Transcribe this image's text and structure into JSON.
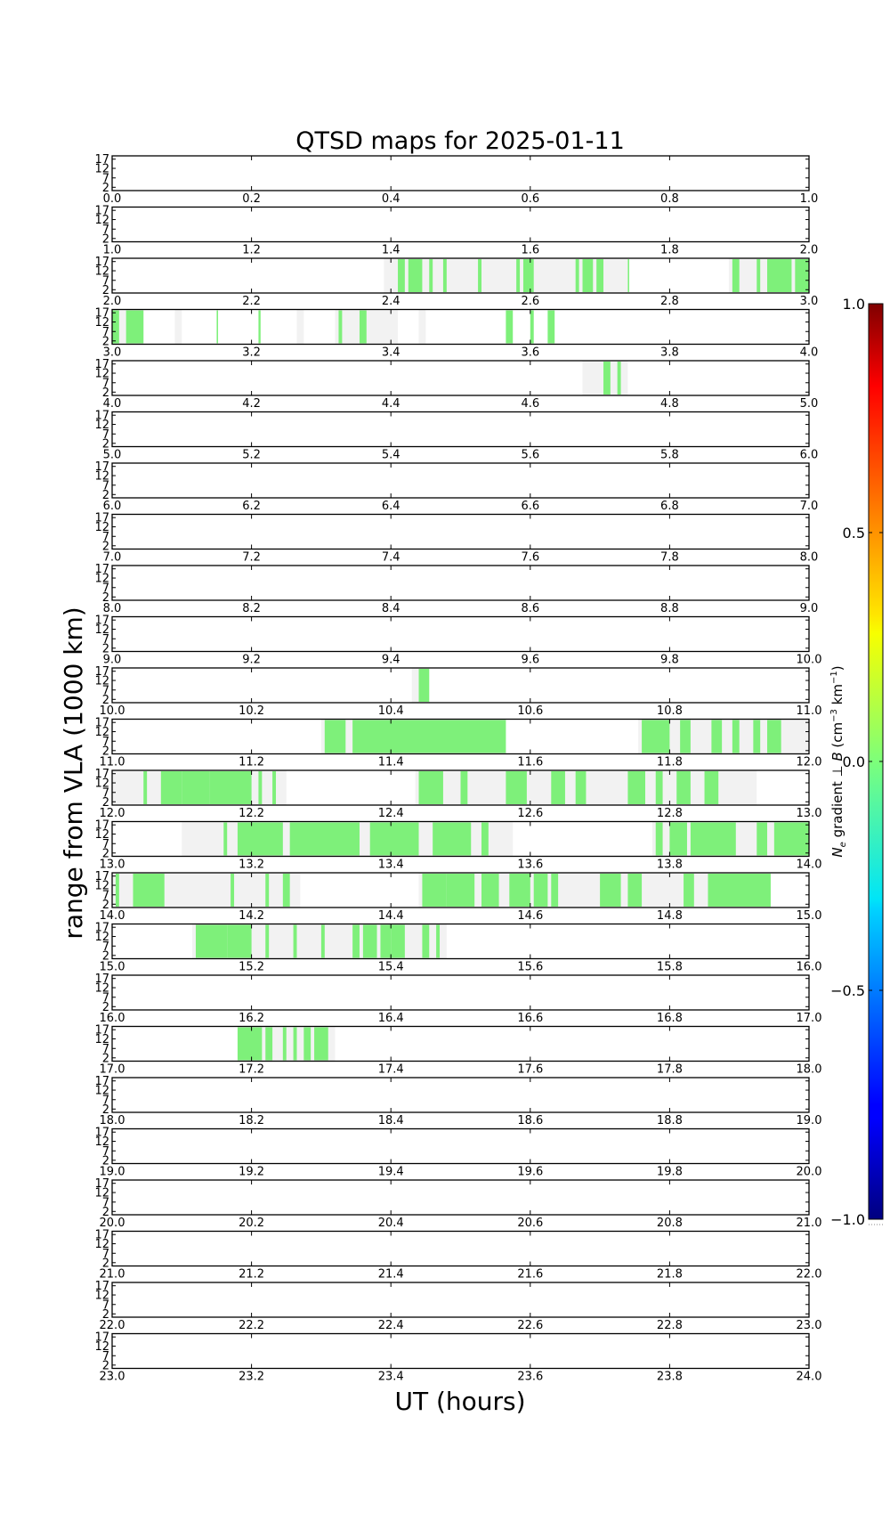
{
  "chart_data": {
    "type": "heatmap",
    "title": "QTSD maps for 2025-01-11",
    "xlabel": "UT (hours)",
    "ylabel": "range from VLA (1000 km)",
    "y_ticks": [
      "17",
      "12",
      "7",
      "2"
    ],
    "colorbar": {
      "label": "N_e gradient ⊥ B (cm^-3 km^-1)",
      "label_parts": {
        "n": "N",
        "e": "e",
        "mid": " gradient ⊥ ",
        "b": "B",
        "unit_open": " (cm",
        "exp1": "−3",
        "unit_mid": " km",
        "exp2": "−1",
        "unit_close": ")"
      },
      "range": [
        -1.0,
        1.0
      ],
      "ticks": [
        "1.0",
        "0.5",
        "0.0",
        "−0.5",
        "−1.0"
      ],
      "colormap": "jet"
    },
    "colors": {
      "coverage": "#f2f2f2",
      "gradient_near_zero": "#7ef07a",
      "axis": "#000000"
    },
    "panels": [
      {
        "range": [
          0,
          1
        ],
        "ticks": [
          "0.0",
          "0.2",
          "0.4",
          "0.6",
          "0.8",
          "1.0"
        ],
        "coverage": [],
        "signal": []
      },
      {
        "range": [
          1,
          2
        ],
        "ticks": [
          "1.0",
          "1.2",
          "1.4",
          "1.6",
          "1.8",
          "2.0"
        ],
        "coverage": [],
        "signal": []
      },
      {
        "range": [
          2,
          3
        ],
        "ticks": [
          "2.0",
          "2.2",
          "2.4",
          "2.6",
          "2.8",
          "3.0"
        ],
        "coverage": [
          [
            2.39,
            2.74
          ],
          [
            2.885,
            3.0
          ]
        ],
        "signal": [
          [
            2.41,
            2.42
          ],
          [
            2.425,
            2.445
          ],
          [
            2.455,
            2.46
          ],
          [
            2.475,
            2.48
          ],
          [
            2.525,
            2.53
          ],
          [
            2.58,
            2.585
          ],
          [
            2.59,
            2.605
          ],
          [
            2.665,
            2.67
          ],
          [
            2.675,
            2.69
          ],
          [
            2.695,
            2.705
          ],
          [
            2.74,
            2.742
          ],
          [
            2.89,
            2.9
          ],
          [
            2.925,
            2.93
          ],
          [
            2.94,
            2.975
          ],
          [
            2.98,
            3.0
          ]
        ]
      },
      {
        "range": [
          3,
          4
        ],
        "ticks": [
          "3.0",
          "3.2",
          "3.4",
          "3.6",
          "3.8",
          "4.0"
        ],
        "coverage": [
          [
            3.0,
            3.045
          ],
          [
            3.09,
            3.1
          ],
          [
            3.265,
            3.275
          ],
          [
            3.32,
            3.41
          ],
          [
            3.44,
            3.45
          ]
        ],
        "signal": [
          [
            3.0,
            3.01
          ],
          [
            3.02,
            3.045
          ],
          [
            3.15,
            3.152
          ],
          [
            3.21,
            3.213
          ],
          [
            3.325,
            3.33
          ],
          [
            3.355,
            3.365
          ],
          [
            3.565,
            3.575
          ],
          [
            3.6,
            3.605
          ],
          [
            3.625,
            3.635
          ]
        ]
      },
      {
        "range": [
          4,
          5
        ],
        "ticks": [
          "4.0",
          "4.2",
          "4.4",
          "4.6",
          "4.8",
          "5.0"
        ],
        "coverage": [
          [
            4.675,
            4.74
          ]
        ],
        "signal": [
          [
            4.705,
            4.715
          ],
          [
            4.725,
            4.73
          ]
        ]
      },
      {
        "range": [
          5,
          6
        ],
        "ticks": [
          "5.0",
          "5.2",
          "5.4",
          "5.6",
          "5.8",
          "6.0"
        ],
        "coverage": [],
        "signal": []
      },
      {
        "range": [
          6,
          7
        ],
        "ticks": [
          "6.0",
          "6.2",
          "6.4",
          "6.6",
          "6.8",
          "7.0"
        ],
        "coverage": [],
        "signal": []
      },
      {
        "range": [
          7,
          8
        ],
        "ticks": [
          "7.0",
          "7.2",
          "7.4",
          "7.6",
          "7.8",
          "8.0"
        ],
        "coverage": [],
        "signal": []
      },
      {
        "range": [
          8,
          9
        ],
        "ticks": [
          "8.0",
          "8.2",
          "8.4",
          "8.6",
          "8.8",
          "9.0"
        ],
        "coverage": [],
        "signal": []
      },
      {
        "range": [
          9,
          10
        ],
        "ticks": [
          "9.0",
          "9.2",
          "9.4",
          "9.6",
          "9.8",
          "10.0"
        ],
        "coverage": [],
        "signal": []
      },
      {
        "range": [
          10,
          11
        ],
        "ticks": [
          "10.0",
          "10.2",
          "10.4",
          "10.6",
          "10.8",
          "11.0"
        ],
        "coverage": [
          [
            10.43,
            10.455
          ]
        ],
        "signal": [
          [
            10.44,
            10.455
          ]
        ]
      },
      {
        "range": [
          11,
          12
        ],
        "ticks": [
          "11.0",
          "11.2",
          "11.4",
          "11.6",
          "11.8",
          "12.0"
        ],
        "coverage": [
          [
            11.3,
            11.565
          ],
          [
            11.755,
            12.0
          ]
        ],
        "signal": [
          [
            11.305,
            11.335
          ],
          [
            11.345,
            11.565
          ],
          [
            11.76,
            11.8
          ],
          [
            11.815,
            11.83
          ],
          [
            11.86,
            11.875
          ],
          [
            11.89,
            11.9
          ],
          [
            11.92,
            11.93
          ],
          [
            11.94,
            11.96
          ]
        ]
      },
      {
        "range": [
          12,
          13
        ],
        "ticks": [
          "12.0",
          "12.2",
          "12.4",
          "12.6",
          "12.8",
          "13.0"
        ],
        "coverage": [
          [
            12.0,
            12.25
          ],
          [
            12.435,
            12.925
          ]
        ],
        "signal": [
          [
            12.045,
            12.05
          ],
          [
            12.07,
            12.1
          ],
          [
            12.1,
            12.14
          ],
          [
            12.14,
            12.2
          ],
          [
            12.21,
            12.215
          ],
          [
            12.23,
            12.235
          ],
          [
            12.44,
            12.475
          ],
          [
            12.5,
            12.51
          ],
          [
            12.565,
            12.595
          ],
          [
            12.63,
            12.65
          ],
          [
            12.665,
            12.68
          ],
          [
            12.74,
            12.765
          ],
          [
            12.78,
            12.79
          ],
          [
            12.81,
            12.83
          ],
          [
            12.85,
            12.87
          ]
        ]
      },
      {
        "range": [
          13,
          14
        ],
        "ticks": [
          "13.0",
          "13.2",
          "13.4",
          "13.6",
          "13.8",
          "14.0"
        ],
        "coverage": [
          [
            13.1,
            13.575
          ],
          [
            13.775,
            14.0
          ]
        ],
        "signal": [
          [
            13.16,
            13.165
          ],
          [
            13.18,
            13.245
          ],
          [
            13.255,
            13.355
          ],
          [
            13.37,
            13.44
          ],
          [
            13.46,
            13.515
          ],
          [
            13.53,
            13.54
          ],
          [
            13.78,
            13.79
          ],
          [
            13.8,
            13.825
          ],
          [
            13.83,
            13.895
          ],
          [
            13.925,
            13.94
          ],
          [
            13.95,
            14.0
          ]
        ]
      },
      {
        "range": [
          14,
          15
        ],
        "ticks": [
          "14.0",
          "14.2",
          "14.4",
          "14.6",
          "14.8",
          "15.0"
        ],
        "coverage": [
          [
            14.0,
            14.27
          ],
          [
            14.44,
            14.945
          ]
        ],
        "signal": [
          [
            14.005,
            14.01
          ],
          [
            14.03,
            14.075
          ],
          [
            14.17,
            14.175
          ],
          [
            14.22,
            14.225
          ],
          [
            14.245,
            14.255
          ],
          [
            14.445,
            14.48
          ],
          [
            14.48,
            14.52
          ],
          [
            14.53,
            14.555
          ],
          [
            14.57,
            14.6
          ],
          [
            14.605,
            14.625
          ],
          [
            14.63,
            14.64
          ],
          [
            14.7,
            14.73
          ],
          [
            14.74,
            14.76
          ],
          [
            14.82,
            14.835
          ],
          [
            14.855,
            14.945
          ]
        ]
      },
      {
        "range": [
          15,
          16
        ],
        "ticks": [
          "15.0",
          "15.2",
          "15.4",
          "15.6",
          "15.8",
          "16.0"
        ],
        "coverage": [
          [
            15.115,
            15.48
          ]
        ],
        "signal": [
          [
            15.12,
            15.165
          ],
          [
            15.165,
            15.2
          ],
          [
            15.22,
            15.225
          ],
          [
            15.26,
            15.265
          ],
          [
            15.3,
            15.305
          ],
          [
            15.345,
            15.355
          ],
          [
            15.36,
            15.38
          ],
          [
            15.385,
            15.4
          ],
          [
            15.4,
            15.42
          ],
          [
            15.445,
            15.455
          ],
          [
            15.465,
            15.47
          ]
        ]
      },
      {
        "range": [
          16,
          17
        ],
        "ticks": [
          "16.0",
          "16.2",
          "16.4",
          "16.6",
          "16.8",
          "17.0"
        ],
        "coverage": [],
        "signal": []
      },
      {
        "range": [
          17,
          18
        ],
        "ticks": [
          "17.0",
          "17.2",
          "17.4",
          "17.6",
          "17.8",
          "18.0"
        ],
        "coverage": [
          [
            17.18,
            17.32
          ]
        ],
        "signal": [
          [
            17.18,
            17.215
          ],
          [
            17.22,
            17.23
          ],
          [
            17.245,
            17.25
          ],
          [
            17.26,
            17.265
          ],
          [
            17.275,
            17.285
          ],
          [
            17.29,
            17.31
          ]
        ]
      },
      {
        "range": [
          18,
          19
        ],
        "ticks": [
          "18.0",
          "18.2",
          "18.4",
          "18.6",
          "18.8",
          "19.0"
        ],
        "coverage": [],
        "signal": []
      },
      {
        "range": [
          19,
          20
        ],
        "ticks": [
          "19.0",
          "19.2",
          "19.4",
          "19.6",
          "19.8",
          "20.0"
        ],
        "coverage": [],
        "signal": []
      },
      {
        "range": [
          20,
          21
        ],
        "ticks": [
          "20.0",
          "20.2",
          "20.4",
          "20.6",
          "20.8",
          "21.0"
        ],
        "coverage": [],
        "signal": []
      },
      {
        "range": [
          21,
          22
        ],
        "ticks": [
          "21.0",
          "21.2",
          "21.4",
          "21.6",
          "21.8",
          "22.0"
        ],
        "coverage": [],
        "signal": []
      },
      {
        "range": [
          22,
          23
        ],
        "ticks": [
          "22.0",
          "22.2",
          "22.4",
          "22.6",
          "22.8",
          "23.0"
        ],
        "coverage": [],
        "signal": []
      },
      {
        "range": [
          23,
          24
        ],
        "ticks": [
          "23.0",
          "23.2",
          "23.4",
          "23.6",
          "23.8",
          "24.0"
        ],
        "coverage": [],
        "signal": []
      }
    ]
  }
}
